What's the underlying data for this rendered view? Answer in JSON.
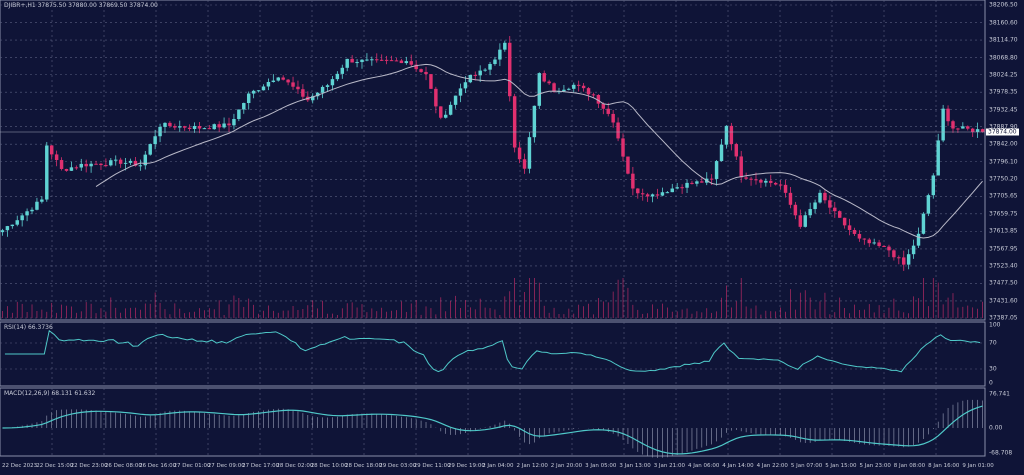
{
  "header": {
    "title": "DJIBR+,H1  37875.50 37880.00 37869.50 37874.00"
  },
  "rsi": {
    "title": "RSI(14) 66.3736",
    "levels": [
      "100",
      "70",
      "30",
      "0"
    ]
  },
  "macd": {
    "title": "MACD(12,26,9) 68.131 61.632",
    "levels": [
      "76.741",
      "0.00",
      "-68.708"
    ]
  },
  "colors": {
    "background": "#0f1437",
    "up": "#5fd3d3",
    "down": "#e0306f",
    "ma": "#b9b9c8",
    "indicator": "#4fc9c9",
    "grid": "#5a5f80"
  },
  "chart_data": {
    "type": "candlestick",
    "symbol": "DJIBR+",
    "timeframe": "H1",
    "ylim": [
      37387.05,
      38206.5
    ],
    "price_labels": [
      "38206.50",
      "38160.60",
      "38114.70",
      "38068.80",
      "38024.25",
      "37978.35",
      "37932.45",
      "37887.90",
      "37842.00",
      "37796.10",
      "37750.20",
      "37705.65",
      "37659.75",
      "37613.85",
      "37567.95",
      "37523.40",
      "37477.50",
      "37431.60",
      "37387.05"
    ],
    "current_price": "37874.00",
    "bars": 200,
    "close_anchors": [
      [
        0,
        37617
      ],
      [
        8,
        37696
      ],
      [
        9,
        37840
      ],
      [
        12,
        37775
      ],
      [
        16,
        37788
      ],
      [
        24,
        37796
      ],
      [
        28,
        37788
      ],
      [
        32,
        37892
      ],
      [
        40,
        37885
      ],
      [
        46,
        37892
      ],
      [
        50,
        37971
      ],
      [
        56,
        38023
      ],
      [
        62,
        37958
      ],
      [
        66,
        37997
      ],
      [
        70,
        38062
      ],
      [
        76,
        38057
      ],
      [
        82,
        38062
      ],
      [
        86,
        38023
      ],
      [
        89,
        37905
      ],
      [
        94,
        38010
      ],
      [
        98,
        38036
      ],
      [
        102,
        38102
      ],
      [
        104,
        37840
      ],
      [
        106,
        37775
      ],
      [
        109,
        38023
      ],
      [
        112,
        37984
      ],
      [
        116,
        37997
      ],
      [
        120,
        37971
      ],
      [
        124,
        37905
      ],
      [
        128,
        37722
      ],
      [
        132,
        37709
      ],
      [
        138,
        37735
      ],
      [
        144,
        37748
      ],
      [
        147,
        37892
      ],
      [
        150,
        37761
      ],
      [
        154,
        37748
      ],
      [
        158,
        37735
      ],
      [
        162,
        37631
      ],
      [
        166,
        37709
      ],
      [
        170,
        37644
      ],
      [
        174,
        37591
      ],
      [
        180,
        37565
      ],
      [
        183,
        37526
      ],
      [
        186,
        37604
      ],
      [
        189,
        37761
      ],
      [
        191,
        37932
      ],
      [
        193,
        37885
      ],
      [
        197,
        37879
      ]
    ],
    "ma_period": 20,
    "time_labels": [
      "22 Dec 2023",
      "22 Dec 15:00",
      "22 Dec 23:00",
      "26 Dec 08:00",
      "26 Dec 16:00",
      "27 Dec 01:00",
      "27 Dec 09:00",
      "27 Dec 17:00",
      "28 Dec 02:00",
      "28 Dec 10:00",
      "28 Dec 18:00",
      "29 Dec 03:00",
      "29 Dec 11:00",
      "29 Dec 19:00",
      "2 Jan 04:00",
      "2 Jan 12:00",
      "2 Jan 20:00",
      "3 Jan 05:00",
      "3 Jan 13:00",
      "3 Jan 21:00",
      "4 Jan 06:00",
      "4 Jan 14:00",
      "4 Jan 22:00",
      "5 Jan 07:00",
      "5 Jan 15:00",
      "5 Jan 23:00",
      "8 Jan 08:00",
      "8 Jan 16:00",
      "9 Jan 01:00"
    ]
  }
}
